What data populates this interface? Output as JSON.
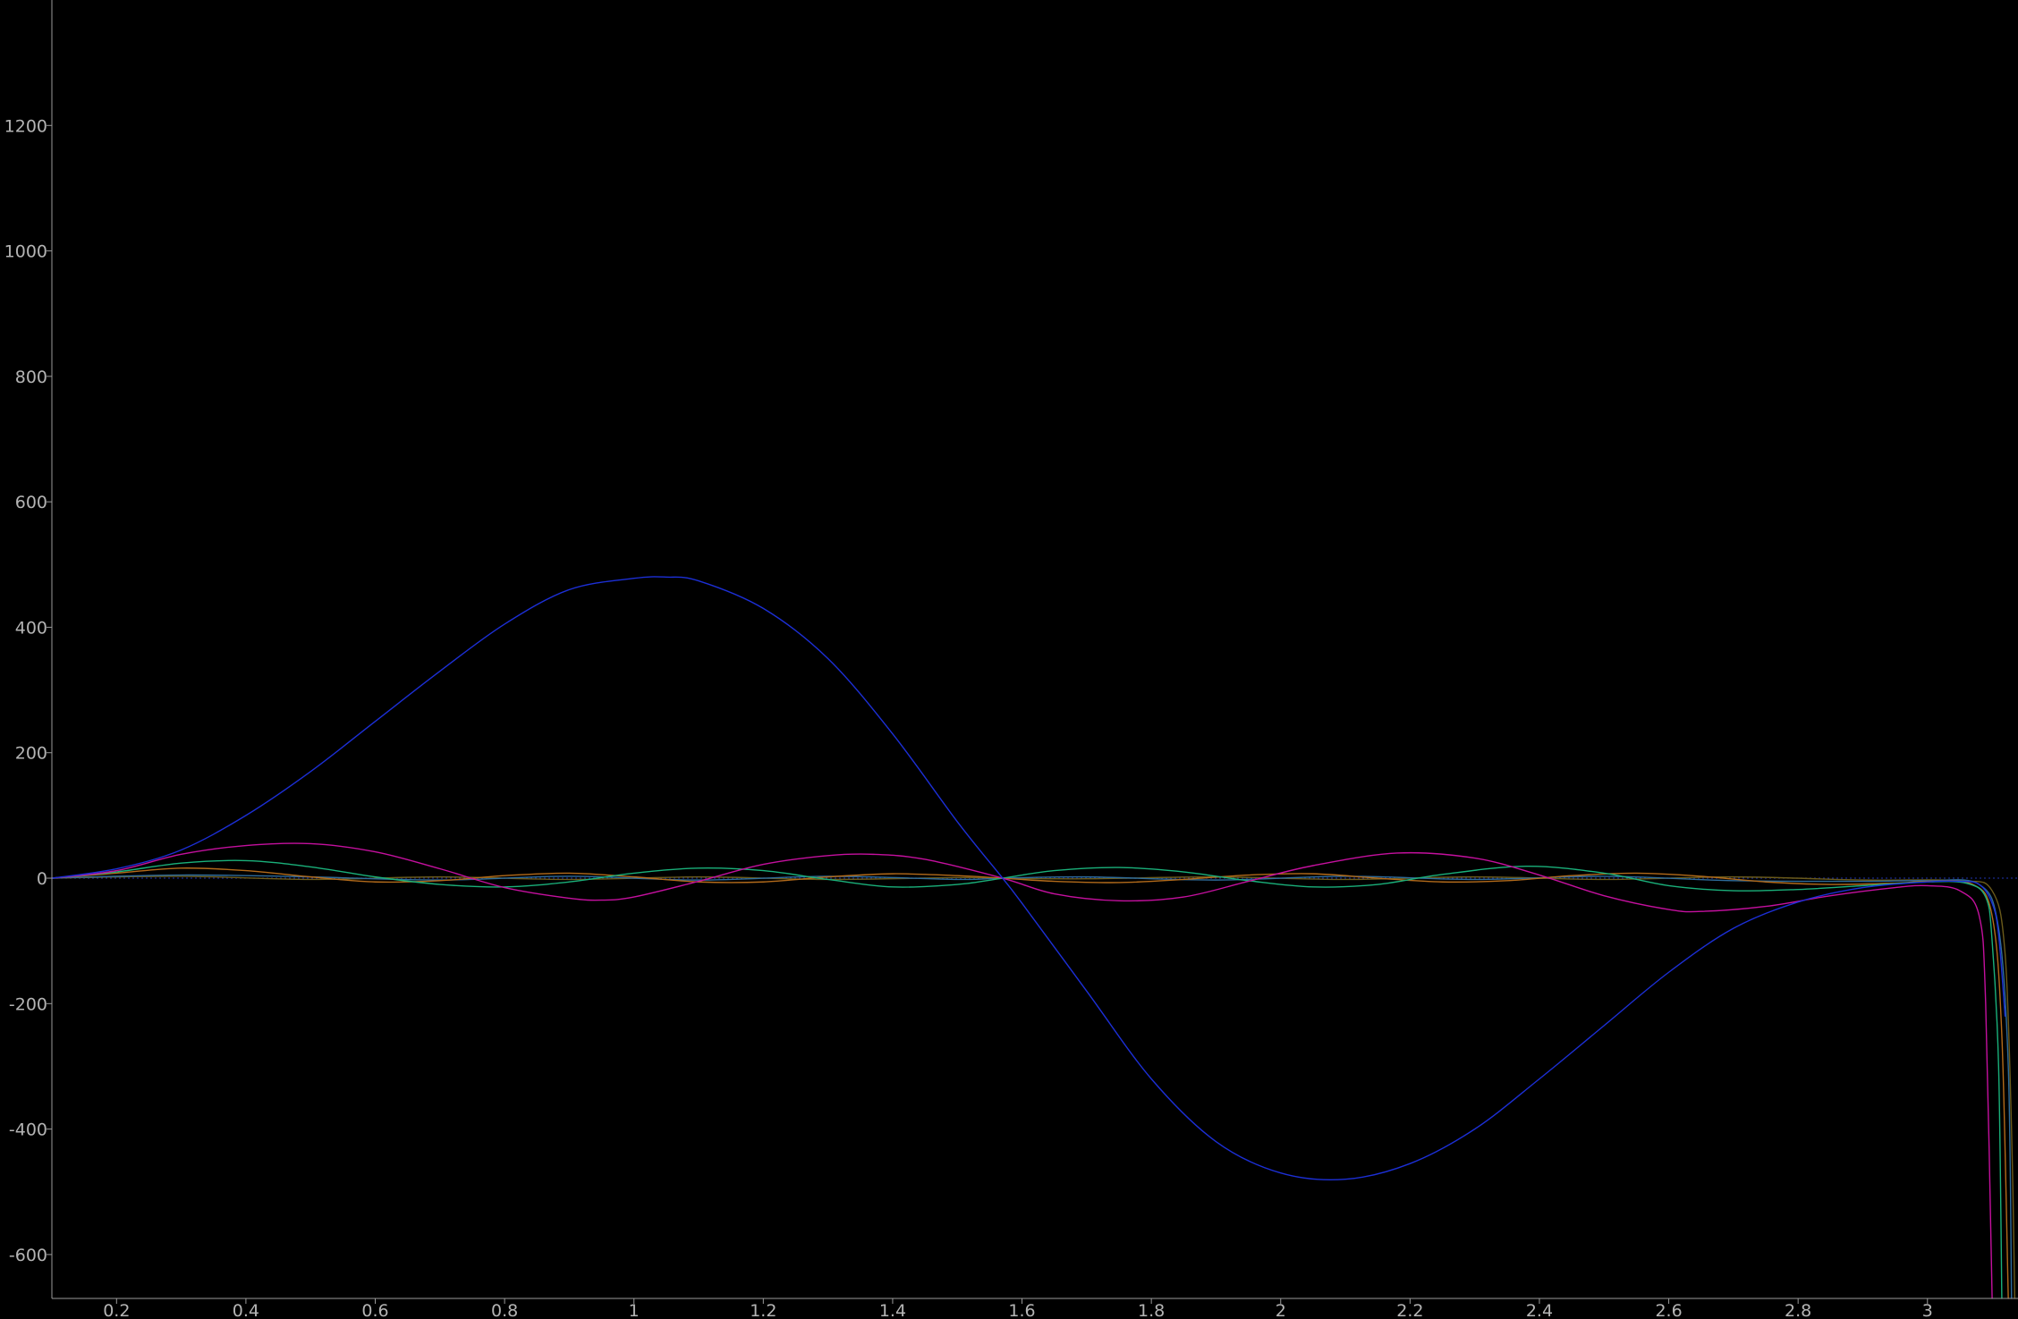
{
  "chart_data": {
    "type": "line",
    "title": "",
    "xlabel": "",
    "ylabel": "",
    "xlim": [
      0.1,
      3.14
    ],
    "ylim": [
      -670,
      1400
    ],
    "x_ticks": [
      0.2,
      0.4,
      0.6,
      0.8,
      1,
      1.2,
      1.4,
      1.6,
      1.8,
      2,
      2.2,
      2.4,
      2.6,
      2.8,
      3
    ],
    "x_tick_labels": [
      "0.2",
      "0.4",
      "0.6",
      "0.8",
      "1",
      "1.2",
      "1.4",
      "1.6",
      "1.8",
      "2",
      "2.2",
      "2.4",
      "2.6",
      "2.8",
      "3"
    ],
    "y_ticks": [
      -600,
      -400,
      -200,
      0,
      200,
      400,
      600,
      800,
      1000,
      1200
    ],
    "y_tick_labels": [
      "-600",
      "-400",
      "-200",
      "0",
      "200",
      "400",
      "600",
      "800",
      "1000",
      "1200"
    ],
    "grid": false,
    "background": "#000000",
    "series": [
      {
        "color": "#1c2fd6",
        "x": [
          0.1,
          0.2,
          0.3,
          0.4,
          0.5,
          0.6,
          0.7,
          0.8,
          0.9,
          1.0,
          1.05,
          1.1,
          1.2,
          1.3,
          1.4,
          1.5,
          1.57,
          1.6,
          1.7,
          1.8,
          1.9,
          2.0,
          2.1,
          2.2,
          2.3,
          2.4,
          2.5,
          2.6,
          2.7,
          2.8,
          2.9,
          3.0,
          3.05,
          3.08,
          3.1,
          3.11,
          3.12
        ],
        "y": [
          0,
          15,
          45,
          100,
          170,
          250,
          330,
          405,
          460,
          478,
          480,
          474,
          430,
          350,
          230,
          90,
          0,
          -40,
          -180,
          -320,
          -420,
          -470,
          -480,
          -455,
          -400,
          -320,
          -235,
          -150,
          -80,
          -38,
          -15,
          -6,
          -5,
          -10,
          -40,
          -90,
          -220
        ]
      },
      {
        "color": "#c4109e",
        "x": [
          0.1,
          0.2,
          0.3,
          0.4,
          0.5,
          0.6,
          0.7,
          0.8,
          0.9,
          0.95,
          1.0,
          1.1,
          1.2,
          1.3,
          1.37,
          1.45,
          1.57,
          1.65,
          1.75,
          1.85,
          1.95,
          2.05,
          2.18,
          2.3,
          2.4,
          2.5,
          2.6,
          2.65,
          2.75,
          2.85,
          2.95,
          3.0,
          3.05,
          3.08,
          3.09,
          3.1
        ],
        "y": [
          0,
          12,
          38,
          52,
          55,
          42,
          15,
          -15,
          -32,
          -35,
          -30,
          -5,
          22,
          36,
          38,
          30,
          0,
          -25,
          -36,
          -30,
          -5,
          20,
          40,
          32,
          5,
          -28,
          -50,
          -53,
          -45,
          -28,
          -15,
          -12,
          -20,
          -60,
          -200,
          -670
        ]
      },
      {
        "color": "#1ab07a",
        "x": [
          0.1,
          0.2,
          0.3,
          0.4,
          0.5,
          0.6,
          0.7,
          0.8,
          0.9,
          1.0,
          1.1,
          1.2,
          1.3,
          1.4,
          1.5,
          1.57,
          1.65,
          1.75,
          1.85,
          1.95,
          2.05,
          2.15,
          2.25,
          2.38,
          2.5,
          2.6,
          2.7,
          2.8,
          2.9,
          3.0,
          3.06,
          3.09,
          3.1,
          3.11,
          3.115
        ],
        "y": [
          0,
          10,
          24,
          28,
          18,
          2,
          -10,
          -14,
          -6,
          8,
          16,
          12,
          -2,
          -14,
          -10,
          0,
          12,
          17,
          10,
          -4,
          -14,
          -10,
          6,
          19,
          8,
          -12,
          -20,
          -18,
          -12,
          -6,
          -8,
          -30,
          -100,
          -300,
          -670
        ]
      },
      {
        "color": "#b26a1a",
        "x": [
          0.1,
          0.2,
          0.3,
          0.4,
          0.5,
          0.6,
          0.7,
          0.8,
          0.9,
          1.0,
          1.1,
          1.2,
          1.3,
          1.4,
          1.5,
          1.57,
          1.65,
          1.75,
          1.85,
          1.95,
          2.05,
          2.15,
          2.25,
          2.35,
          2.45,
          2.55,
          2.65,
          2.75,
          2.85,
          2.95,
          3.0,
          3.07,
          3.1,
          3.115,
          3.125
        ],
        "y": [
          0,
          8,
          16,
          12,
          2,
          -6,
          -4,
          4,
          8,
          2,
          -6,
          -6,
          2,
          7,
          4,
          0,
          -5,
          -7,
          -2,
          5,
          7,
          0,
          -6,
          -4,
          4,
          8,
          3,
          -6,
          -10,
          -8,
          -5,
          -10,
          -60,
          -250,
          -670
        ]
      },
      {
        "color": "#2d6b9a",
        "x": [
          0.1,
          0.3,
          0.5,
          0.7,
          0.9,
          1.1,
          1.3,
          1.5,
          1.57,
          1.7,
          1.9,
          2.1,
          2.3,
          2.5,
          2.7,
          2.9,
          3.0,
          3.08,
          3.11,
          3.125,
          3.13
        ],
        "y": [
          0,
          5,
          2,
          -3,
          3,
          -3,
          3,
          -2,
          0,
          2,
          -3,
          3,
          -2,
          3,
          -4,
          -5,
          -4,
          -10,
          -80,
          -300,
          -670
        ]
      },
      {
        "color": "#6a5a1a",
        "x": [
          0.1,
          0.3,
          0.5,
          0.7,
          0.9,
          1.1,
          1.3,
          1.5,
          1.57,
          1.7,
          1.9,
          2.1,
          2.3,
          2.5,
          2.7,
          2.9,
          3.05,
          3.1,
          3.12,
          3.13,
          3.135
        ],
        "y": [
          0,
          3,
          -2,
          2,
          -2,
          2,
          -2,
          1,
          0,
          -1,
          2,
          -2,
          2,
          -2,
          2,
          -3,
          -4,
          -20,
          -120,
          -400,
          -670
        ]
      }
    ]
  }
}
